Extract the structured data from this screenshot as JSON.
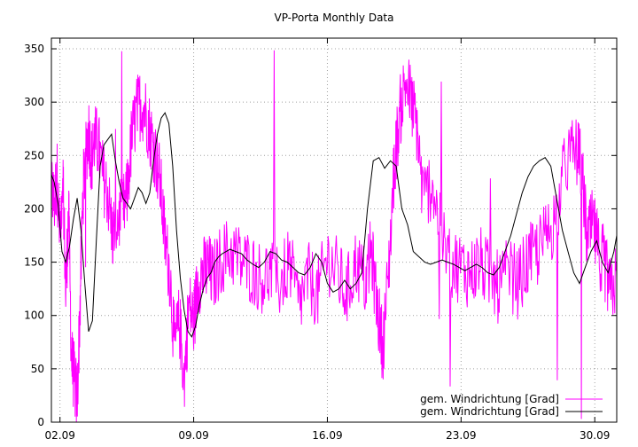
{
  "chart_data": {
    "type": "line",
    "title": "VP-Porta Monthly Data",
    "xlabel": "",
    "ylabel": "",
    "ylim": [
      0,
      360
    ],
    "xlim": [
      1.55,
      31.15
    ],
    "yticks": [
      0,
      50,
      100,
      150,
      200,
      250,
      300,
      350
    ],
    "xticks": [
      {
        "value": 2,
        "label": "02.09"
      },
      {
        "value": 9,
        "label": "09.09"
      },
      {
        "value": 16,
        "label": "16.09"
      },
      {
        "value": 23,
        "label": "23.09"
      },
      {
        "value": 30,
        "label": "30.09"
      }
    ],
    "grid": true,
    "legend_position": "bottom-right",
    "series": [
      {
        "name": "gem. Windrichtung [Grad]",
        "color": "#ff00ff",
        "style": "noisy-raw",
        "x": [
          1.55,
          1.7,
          1.85,
          2.0,
          2.15,
          2.3,
          2.45,
          2.6,
          2.75,
          2.9,
          3.05,
          3.2,
          3.35,
          3.5,
          3.65,
          3.8,
          4.0,
          4.25,
          4.5,
          4.75,
          5.0,
          5.25,
          5.5,
          5.75,
          6.0,
          6.25,
          6.5,
          6.75,
          7.0,
          7.25,
          7.5,
          7.75,
          8.0,
          8.25,
          8.5,
          8.75,
          9.0,
          9.25,
          9.5,
          9.75,
          10.0,
          10.5,
          11.0,
          11.5,
          12.0,
          12.5,
          13.0,
          13.5,
          14.0,
          14.5,
          15.0,
          15.5,
          16.0,
          16.5,
          17.0,
          17.5,
          18.0,
          18.3,
          18.6,
          18.9,
          19.2,
          19.5,
          19.8,
          20.1,
          20.4,
          20.7,
          21.0,
          21.5,
          22.0,
          22.5,
          23.0,
          23.5,
          24.0,
          24.5,
          25.0,
          25.5,
          26.0,
          26.5,
          27.0,
          27.5,
          28.0,
          28.5,
          29.0,
          29.3,
          29.6,
          29.9,
          30.2,
          30.5,
          30.8,
          31.15
        ],
        "values": [
          220,
          205,
          230,
          170,
          240,
          120,
          200,
          60,
          40,
          20,
          110,
          215,
          250,
          275,
          245,
          265,
          260,
          230,
          215,
          175,
          190,
          195,
          210,
          265,
          290,
          300,
          290,
          270,
          250,
          225,
          170,
          140,
          70,
          95,
          40,
          110,
          95,
          135,
          140,
          145,
          135,
          155,
          160,
          150,
          145,
          135,
          140,
          130,
          150,
          110,
          135,
          120,
          155,
          140,
          120,
          150,
          130,
          160,
          110,
          70,
          140,
          240,
          290,
          320,
          300,
          275,
          210,
          225,
          170,
          150,
          145,
          140,
          150,
          135,
          125,
          140,
          130,
          150,
          160,
          175,
          195,
          245,
          255,
          240,
          170,
          185,
          160,
          150,
          120,
          135
        ]
      },
      {
        "name": "gem. Windrichtung [Grad]",
        "color": "#000000",
        "style": "smoothed",
        "x": [
          1.55,
          1.7,
          1.9,
          2.1,
          2.3,
          2.5,
          2.7,
          2.9,
          3.1,
          3.3,
          3.5,
          3.7,
          3.9,
          4.1,
          4.3,
          4.5,
          4.7,
          4.9,
          5.1,
          5.3,
          5.5,
          5.7,
          5.9,
          6.1,
          6.3,
          6.5,
          6.7,
          6.9,
          7.1,
          7.3,
          7.5,
          7.7,
          7.9,
          8.1,
          8.3,
          8.5,
          8.7,
          8.9,
          9.1,
          9.3,
          9.5,
          9.7,
          9.9,
          10.1,
          10.3,
          10.5,
          10.7,
          10.9,
          11.2,
          11.5,
          11.8,
          12.1,
          12.4,
          12.7,
          13.0,
          13.3,
          13.6,
          13.9,
          14.2,
          14.5,
          14.8,
          15.1,
          15.4,
          15.7,
          16.0,
          16.3,
          16.6,
          16.9,
          17.2,
          17.5,
          17.8,
          18.1,
          18.4,
          18.7,
          19.0,
          19.3,
          19.6,
          19.9,
          20.2,
          20.5,
          20.8,
          21.1,
          21.4,
          21.7,
          22.0,
          22.3,
          22.6,
          22.9,
          23.2,
          23.5,
          23.8,
          24.1,
          24.4,
          24.7,
          25.0,
          25.3,
          25.6,
          25.9,
          26.2,
          26.5,
          26.8,
          27.1,
          27.4,
          27.7,
          28.0,
          28.3,
          28.6,
          28.9,
          29.2,
          29.5,
          29.8,
          30.1,
          30.4,
          30.7,
          31.0,
          31.15
        ],
        "values": [
          232,
          225,
          205,
          160,
          150,
          165,
          190,
          210,
          180,
          130,
          85,
          95,
          170,
          240,
          260,
          265,
          270,
          245,
          225,
          210,
          205,
          200,
          210,
          220,
          215,
          205,
          215,
          245,
          270,
          285,
          290,
          280,
          240,
          180,
          135,
          105,
          85,
          80,
          90,
          110,
          125,
          135,
          140,
          150,
          155,
          158,
          160,
          162,
          160,
          158,
          152,
          148,
          145,
          150,
          160,
          158,
          152,
          150,
          145,
          140,
          138,
          145,
          158,
          150,
          130,
          122,
          125,
          133,
          125,
          130,
          140,
          200,
          245,
          248,
          238,
          245,
          240,
          200,
          185,
          160,
          155,
          150,
          148,
          150,
          152,
          150,
          148,
          145,
          142,
          145,
          148,
          145,
          140,
          138,
          145,
          160,
          175,
          195,
          215,
          230,
          240,
          245,
          248,
          240,
          210,
          180,
          160,
          140,
          130,
          145,
          160,
          170,
          150,
          140,
          160,
          175
        ]
      }
    ]
  }
}
